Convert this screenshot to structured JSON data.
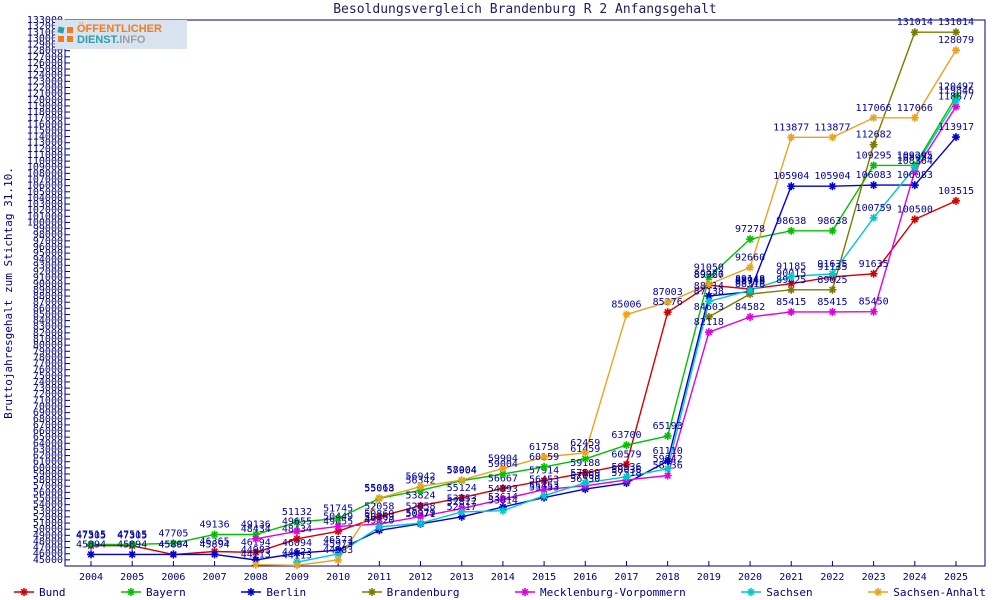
{
  "title": "Besoldungsvergleich Brandenburg R 2 Anfangsgehalt",
  "logo": {
    "line1": "ÖFFENTLICHER",
    "line2_teal": "DIENST.",
    "line2_gray": "INFO"
  },
  "y_axis": {
    "title": "Bruttojahresgehalt zum Stichtag 31.10.",
    "min": 45000,
    "max": 133000,
    "step": 1000
  },
  "colors": {
    "axis": "#000080",
    "point_label": "#0000a0",
    "title_text": "#202060"
  },
  "chart_data": {
    "type": "line",
    "x": [
      2004,
      2005,
      2006,
      2007,
      2008,
      2009,
      2010,
      2011,
      2012,
      2013,
      2014,
      2015,
      2016,
      2017,
      2018,
      2019,
      2020,
      2021,
      2022,
      2023,
      2024,
      2025
    ],
    "xlabel": "",
    "ylabel": "Bruttojahresgehalt zum Stichtag 31.10.",
    "ylim": [
      44000,
      133000
    ],
    "grid": false,
    "legend_position": "bottom",
    "series": [
      {
        "name": "Bund",
        "color": "#d40000",
        "values": [
          47305,
          47305,
          45864,
          46365,
          46194,
          48434,
          49655,
          52058,
          53824,
          55124,
          56667,
          57914,
          59188,
          60579,
          85376,
          89767,
          89148,
          90015,
          91135,
          91635,
          100500,
          103515
        ]
      },
      {
        "name": "Bayern",
        "color": "#00c000",
        "values": [
          47515,
          47515,
          47705,
          49136,
          49136,
          51132,
          51745,
          55018,
          56342,
          57904,
          59004,
          60159,
          61459,
          63700,
          65193,
          91050,
          97278,
          98638,
          98638,
          109295,
          109295,
          120497
        ]
      },
      {
        "name": "Berlin",
        "color": "#0000d4",
        "values": [
          45894,
          45894,
          45894,
          45894,
          44983,
          46094,
          46573,
          49820,
          50871,
          52017,
          53614,
          55153,
          56530,
          57518,
          61110,
          88014,
          88718,
          105904,
          105904,
          106083,
          106083,
          113917
        ]
      },
      {
        "name": "Brandenburg",
        "color": "#7b7b00",
        "values": [
          null,
          null,
          null,
          null,
          null,
          null,
          null,
          null,
          null,
          null,
          null,
          null,
          null,
          null,
          null,
          84603,
          88318,
          89025,
          89025,
          112682,
          131014,
          131014
        ]
      },
      {
        "name": "Mecklenburg-Vorpommern",
        "color": "#e000e0",
        "values": [
          null,
          null,
          null,
          null,
          48434,
          49655,
          50449,
          50869,
          52058,
          53353,
          54893,
          56453,
          57069,
          58036,
          58736,
          82118,
          84582,
          85415,
          85415,
          85450,
          108364,
          118877
        ]
      },
      {
        "name": "Sachsen",
        "color": "#00c8c8",
        "values": [
          null,
          null,
          null,
          null,
          null,
          44623,
          45973,
          50369,
          50979,
          52817,
          53014,
          55453,
          57569,
          58536,
          59842,
          87138,
          88948,
          91185,
          91635,
          100759,
          108954,
          119846
        ]
      },
      {
        "name": "Sachsen-Anhalt",
        "color": "#e8a420",
        "values": [
          null,
          null,
          null,
          null,
          44213,
          44113,
          44983,
          55063,
          56942,
          58004,
          59904,
          61758,
          62459,
          85006,
          87003,
          89926,
          92660,
          113877,
          113877,
          117066,
          117066,
          128079
        ]
      }
    ]
  }
}
